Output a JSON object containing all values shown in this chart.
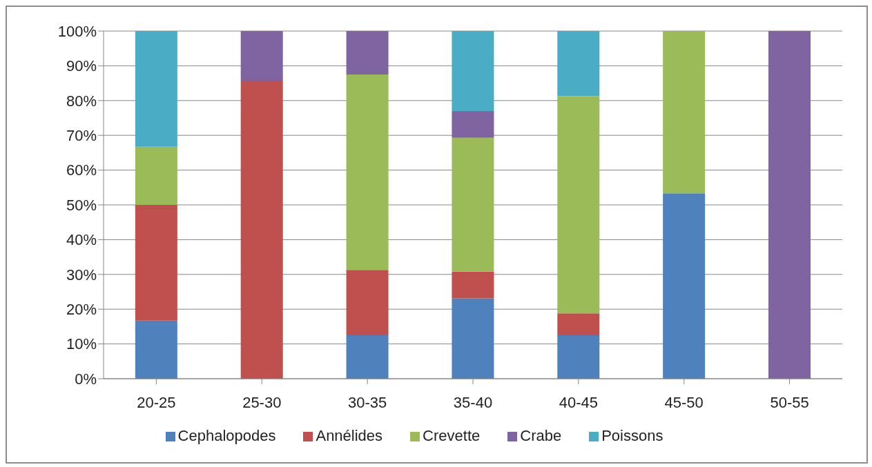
{
  "chart_data": {
    "type": "bar",
    "stacked": true,
    "categories": [
      "20-25",
      "25-30",
      "30-35",
      "35-40",
      "40-45",
      "45-50",
      "50-55"
    ],
    "series": [
      {
        "name": "Cephalopodes",
        "color": "#4f81bd",
        "values": [
          16.7,
          0,
          12.5,
          23.1,
          12.5,
          53.3,
          0
        ]
      },
      {
        "name": "Annélides",
        "color": "#c0504d",
        "values": [
          33.3,
          85.7,
          18.8,
          7.7,
          6.3,
          0,
          0
        ]
      },
      {
        "name": "Crevette",
        "color": "#9bbb59",
        "values": [
          16.7,
          0,
          56.2,
          38.5,
          62.5,
          46.7,
          0
        ]
      },
      {
        "name": "Crabe",
        "color": "#8064a2",
        "values": [
          0,
          14.3,
          12.5,
          7.7,
          0,
          0,
          100
        ]
      },
      {
        "name": "Poissons",
        "color": "#4bacc6",
        "values": [
          33.3,
          0,
          0,
          23.1,
          18.7,
          0,
          0
        ]
      }
    ],
    "ylim": [
      0,
      100
    ],
    "yticks": [
      {
        "value": 0,
        "label": "0%"
      },
      {
        "value": 10,
        "label": "10%"
      },
      {
        "value": 20,
        "label": "20%"
      },
      {
        "value": 30,
        "label": "30%"
      },
      {
        "value": 40,
        "label": "40%"
      },
      {
        "value": 50,
        "label": "50%"
      },
      {
        "value": 60,
        "label": "60%"
      },
      {
        "value": 70,
        "label": "70%"
      },
      {
        "value": 80,
        "label": "80%"
      },
      {
        "value": 90,
        "label": "90%"
      },
      {
        "value": 100,
        "label": "100%"
      }
    ],
    "grid": "y",
    "legend": "bottom"
  }
}
